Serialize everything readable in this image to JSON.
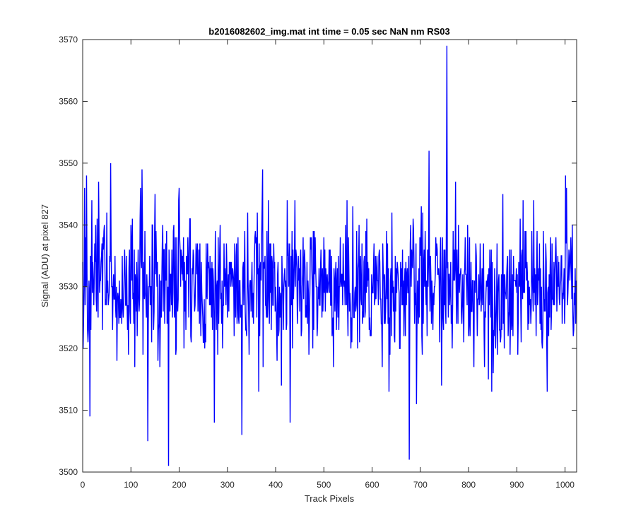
{
  "chart_data": {
    "type": "line",
    "title": "b2016082602_img.mat int time = 0.05 sec  NaN nm RS03",
    "xlabel": "Track Pixels",
    "ylabel": "Signal (ADU) at pixel 827",
    "xlim": [
      0,
      1024
    ],
    "ylim": [
      3500,
      3570
    ],
    "xticks": [
      0,
      100,
      200,
      300,
      400,
      500,
      600,
      700,
      800,
      900,
      1000
    ],
    "yticks": [
      3500,
      3510,
      3520,
      3530,
      3540,
      3550,
      3560,
      3570
    ],
    "grid": false,
    "series_color": "#0000ff",
    "series": [
      {
        "n_points": 1024,
        "baseline": 3530,
        "noise_std": 5.5,
        "min": 3501,
        "max": 3569,
        "notable_points": [
          {
            "x": 1,
            "y": 3520
          },
          {
            "x": 4,
            "y": 3546
          },
          {
            "x": 8,
            "y": 3548
          },
          {
            "x": 15,
            "y": 3509
          },
          {
            "x": 58,
            "y": 3550
          },
          {
            "x": 123,
            "y": 3549
          },
          {
            "x": 135,
            "y": 3505
          },
          {
            "x": 178,
            "y": 3501
          },
          {
            "x": 200,
            "y": 3546
          },
          {
            "x": 273,
            "y": 3508
          },
          {
            "x": 330,
            "y": 3506
          },
          {
            "x": 373,
            "y": 3549
          },
          {
            "x": 430,
            "y": 3508
          },
          {
            "x": 677,
            "y": 3502
          },
          {
            "x": 692,
            "y": 3511
          },
          {
            "x": 718,
            "y": 3552
          },
          {
            "x": 755,
            "y": 3569
          },
          {
            "x": 773,
            "y": 3547
          },
          {
            "x": 848,
            "y": 3513
          },
          {
            "x": 963,
            "y": 3513
          },
          {
            "x": 1003,
            "y": 3546
          },
          {
            "x": 1023,
            "y": 3531
          }
        ]
      }
    ]
  }
}
